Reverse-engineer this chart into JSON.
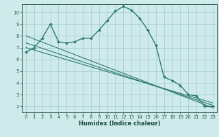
{
  "xlabel": "Humidex (Indice chaleur)",
  "bg_color": "#ceeaea",
  "grid_color": "#a8d0d0",
  "line_color": "#2d7a6e",
  "xlim": [
    -0.5,
    23.5
  ],
  "ylim": [
    1.5,
    10.7
  ],
  "xticks": [
    0,
    1,
    2,
    3,
    4,
    5,
    6,
    7,
    8,
    9,
    10,
    11,
    12,
    13,
    14,
    15,
    16,
    17,
    18,
    19,
    20,
    21,
    22,
    23
  ],
  "yticks": [
    2,
    3,
    4,
    5,
    6,
    7,
    8,
    9,
    10
  ],
  "main_x": [
    0,
    1,
    2,
    3,
    4,
    5,
    6,
    7,
    8,
    9,
    10,
    11,
    12,
    13,
    14,
    15,
    16,
    17,
    18,
    19,
    20,
    21,
    22,
    23
  ],
  "main_y": [
    6.6,
    7.0,
    7.8,
    9.0,
    7.5,
    7.4,
    7.5,
    7.8,
    7.8,
    8.5,
    9.3,
    10.1,
    10.5,
    10.2,
    9.5,
    8.5,
    7.2,
    4.5,
    4.2,
    3.8,
    3.0,
    2.9,
    2.0,
    2.0
  ],
  "line2_x": [
    0,
    23
  ],
  "line2_y": [
    8.0,
    1.9
  ],
  "line3_x": [
    0,
    23
  ],
  "line3_y": [
    7.4,
    2.1
  ],
  "line4_x": [
    0,
    23
  ],
  "line4_y": [
    7.0,
    2.3
  ]
}
